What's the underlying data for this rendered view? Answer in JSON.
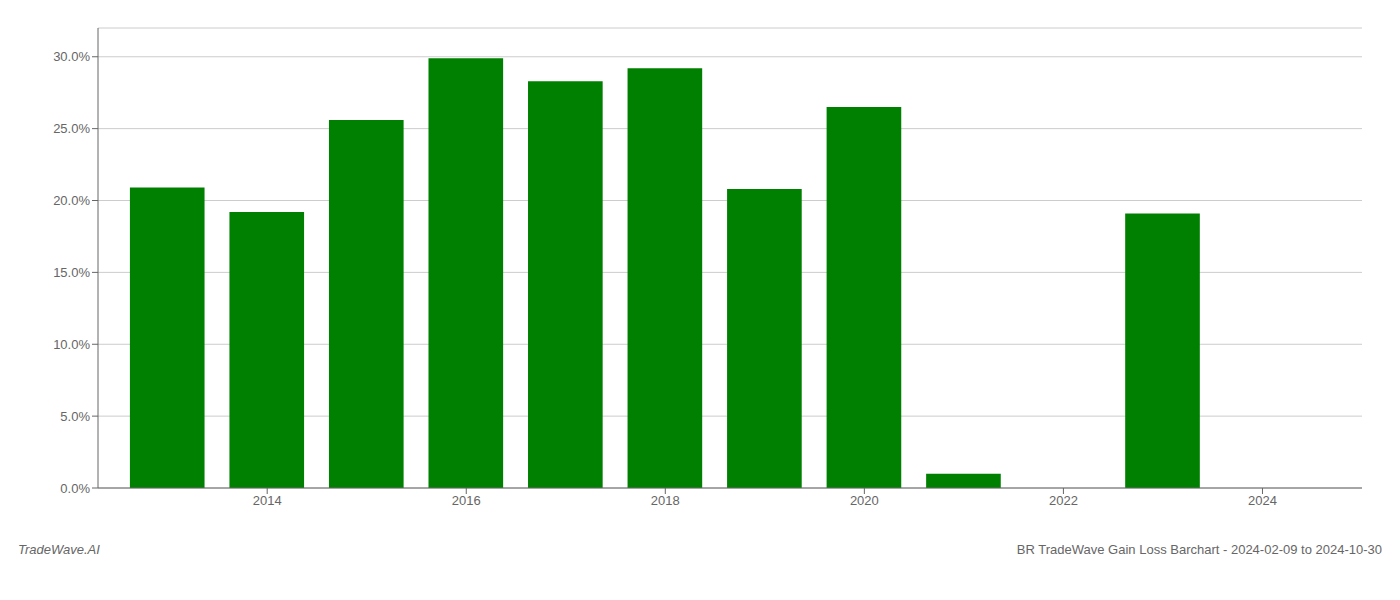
{
  "chart_data": {
    "type": "bar",
    "title": "BR TradeWave Gain Loss Barchart - 2024-02-09 to 2024-10-30",
    "annotations": [
      "TradeWave.AI"
    ],
    "x": [
      2013,
      2014,
      2015,
      2016,
      2017,
      2018,
      2019,
      2020,
      2021,
      2022,
      2023
    ],
    "values": [
      0.209,
      0.192,
      0.256,
      0.299,
      0.283,
      0.292,
      0.208,
      0.265,
      0.01,
      0.0,
      0.191
    ],
    "color": "#008000",
    "xlim": [
      2012.3,
      2025.0
    ],
    "xticks": [
      2014,
      2016,
      2018,
      2020,
      2022,
      2024
    ],
    "ylim": [
      0,
      0.32
    ],
    "yticks": [
      {
        "value": 0.0,
        "label": "0.0%"
      },
      {
        "value": 0.05,
        "label": "5.0%"
      },
      {
        "value": 0.1,
        "label": "10.0%"
      },
      {
        "value": 0.15,
        "label": "15.0%"
      },
      {
        "value": 0.2,
        "label": "20.0%"
      },
      {
        "value": 0.25,
        "label": "25.0%"
      },
      {
        "value": 0.3,
        "label": "30.0%"
      }
    ],
    "grid": true
  }
}
